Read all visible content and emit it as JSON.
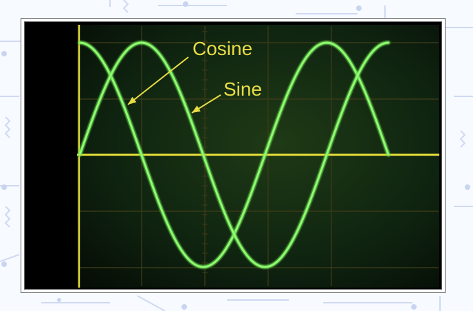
{
  "chart_data": {
    "type": "line",
    "x": [
      0,
      30,
      60,
      90,
      120,
      150,
      180,
      210,
      240,
      270,
      300,
      330,
      360,
      390,
      420,
      450
    ],
    "series": [
      {
        "name": "Cosine",
        "values": [
          1.0,
          0.866,
          0.5,
          0.0,
          -0.5,
          -0.866,
          -1.0,
          -0.866,
          -0.5,
          0.0,
          0.5,
          0.866,
          1.0,
          0.866,
          0.5,
          0.0
        ]
      },
      {
        "name": "Sine",
        "values": [
          0.0,
          0.5,
          0.866,
          1.0,
          0.866,
          0.5,
          0.0,
          -0.5,
          -0.866,
          -1.0,
          -0.866,
          -0.5,
          0.0,
          0.5,
          0.866,
          1.0
        ]
      }
    ],
    "xlim": [
      0,
      450
    ],
    "ylim": [
      -1,
      1
    ],
    "grid": true
  },
  "colors": {
    "trace": "#8dfc6e",
    "trace_glow": "#3fae2c",
    "axis": "#e8e03a",
    "label": "#e8dc46",
    "graticule": "#3a3a18",
    "screen": "#0d1f0b"
  }
}
